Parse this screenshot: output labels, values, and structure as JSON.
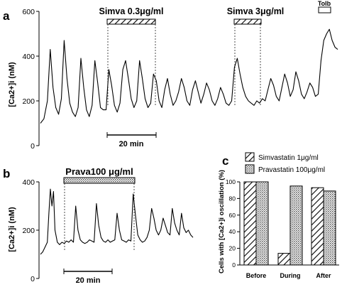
{
  "chart_data": [
    {
      "panel": "a",
      "type": "line",
      "ylabel": "[Ca2+]i (nM)",
      "ylim": [
        0,
        600
      ],
      "yticks": [
        "0",
        "200",
        "400",
        "600"
      ],
      "scalebar": "20 min",
      "treatments": [
        {
          "label": "Simva 0.3μg/ml",
          "pattern": "hatched"
        },
        {
          "label": "Simva 3μg/ml",
          "pattern": "hatched"
        },
        {
          "label": "Tolb",
          "pattern": "open"
        }
      ],
      "series": [
        {
          "t": [
            0,
            5,
            10,
            14,
            18,
            22,
            26,
            30,
            34,
            38,
            42,
            46,
            50,
            54,
            58,
            62,
            66,
            70,
            74,
            78,
            82,
            86,
            90,
            94,
            98,
            102,
            106,
            110,
            114,
            118,
            122,
            126,
            130,
            134,
            138,
            142,
            146,
            150,
            154,
            158,
            162,
            166,
            170,
            174,
            178,
            182,
            186,
            190,
            194,
            198,
            202,
            206,
            210,
            214,
            218,
            222,
            226,
            230,
            234,
            238,
            242,
            246,
            250,
            254,
            258,
            262,
            266,
            270,
            274,
            278,
            282,
            286,
            290,
            294,
            298,
            302,
            306,
            310,
            314,
            318,
            322,
            326,
            330,
            334,
            338,
            342,
            346,
            350,
            354,
            358,
            362,
            366,
            370,
            374,
            378,
            382,
            386,
            390,
            394,
            398,
            402,
            406,
            410,
            414,
            418,
            422,
            426
          ],
          "y": [
            100,
            120,
            200,
            430,
            260,
            170,
            140,
            210,
            470,
            300,
            190,
            150,
            130,
            170,
            390,
            260,
            160,
            130,
            180,
            380,
            280,
            170,
            160,
            160,
            340,
            270,
            180,
            150,
            190,
            340,
            380,
            300,
            210,
            170,
            200,
            380,
            300,
            210,
            170,
            190,
            320,
            290,
            200,
            170,
            250,
            300,
            230,
            180,
            200,
            240,
            300,
            260,
            200,
            180,
            250,
            290,
            240,
            190,
            230,
            280,
            250,
            200,
            180,
            210,
            260,
            230,
            190,
            180,
            200,
            350,
            390,
            320,
            260,
            220,
            200,
            190,
            180,
            200,
            190,
            210,
            200,
            250,
            300,
            270,
            220,
            200,
            260,
            320,
            280,
            220,
            250,
            330,
            290,
            230,
            210,
            240,
            280,
            260,
            220,
            230,
            380,
            470,
            500,
            520,
            470,
            440,
            430
          ]
        }
      ]
    },
    {
      "panel": "b",
      "type": "line",
      "ylabel": "[Ca2+]i (nM)",
      "ylim": [
        0,
        400
      ],
      "yticks": [
        "0",
        "200",
        "400"
      ],
      "scalebar": "20 min",
      "treatments": [
        {
          "label": "Prava100 μg/ml",
          "pattern": "dotted"
        }
      ],
      "series": [
        {
          "t": [
            0,
            3,
            6,
            9,
            11,
            13,
            15,
            17,
            19,
            22,
            25,
            28,
            31,
            34,
            37,
            40,
            43,
            46,
            49,
            52,
            55,
            58,
            61,
            64,
            67,
            70,
            73,
            76,
            79,
            82,
            85,
            88,
            91,
            94,
            97,
            100,
            103,
            106,
            109,
            112,
            115,
            118,
            121,
            124,
            127,
            130,
            133,
            136,
            139,
            142,
            145,
            148,
            151,
            154,
            157,
            160,
            163,
            166,
            169,
            172,
            175,
            178,
            181,
            184,
            187,
            190,
            193,
            196,
            199
          ],
          "y": [
            100,
            110,
            130,
            150,
            270,
            370,
            300,
            360,
            200,
            150,
            140,
            150,
            145,
            155,
            150,
            160,
            150,
            300,
            200,
            160,
            150,
            145,
            150,
            160,
            155,
            150,
            310,
            220,
            170,
            155,
            150,
            160,
            150,
            155,
            160,
            270,
            200,
            160,
            155,
            150,
            160,
            155,
            350,
            260,
            180,
            160,
            150,
            155,
            170,
            200,
            290,
            250,
            200,
            180,
            200,
            250,
            220,
            190,
            180,
            290,
            230,
            200,
            180,
            270,
            210,
            190,
            200,
            180,
            170
          ]
        }
      ]
    },
    {
      "panel": "c",
      "type": "bar",
      "ylabel": "Cells with [Ca2+]i oscillation (%)",
      "ylim": [
        0,
        100
      ],
      "yticks": [
        "0",
        "20",
        "40",
        "60",
        "80",
        "100"
      ],
      "categories": [
        "Before",
        "During",
        "After"
      ],
      "series": [
        {
          "name": "Simvastatin 1μg/ml",
          "pattern": "hatched",
          "values": [
            100,
            14,
            93
          ]
        },
        {
          "name": "Pravastatin 100μg/ml",
          "pattern": "dotted",
          "values": [
            100,
            95,
            89
          ]
        }
      ]
    }
  ],
  "panels": {
    "a": {
      "letter": "a"
    },
    "b": {
      "letter": "b"
    },
    "c": {
      "letter": "c"
    }
  }
}
